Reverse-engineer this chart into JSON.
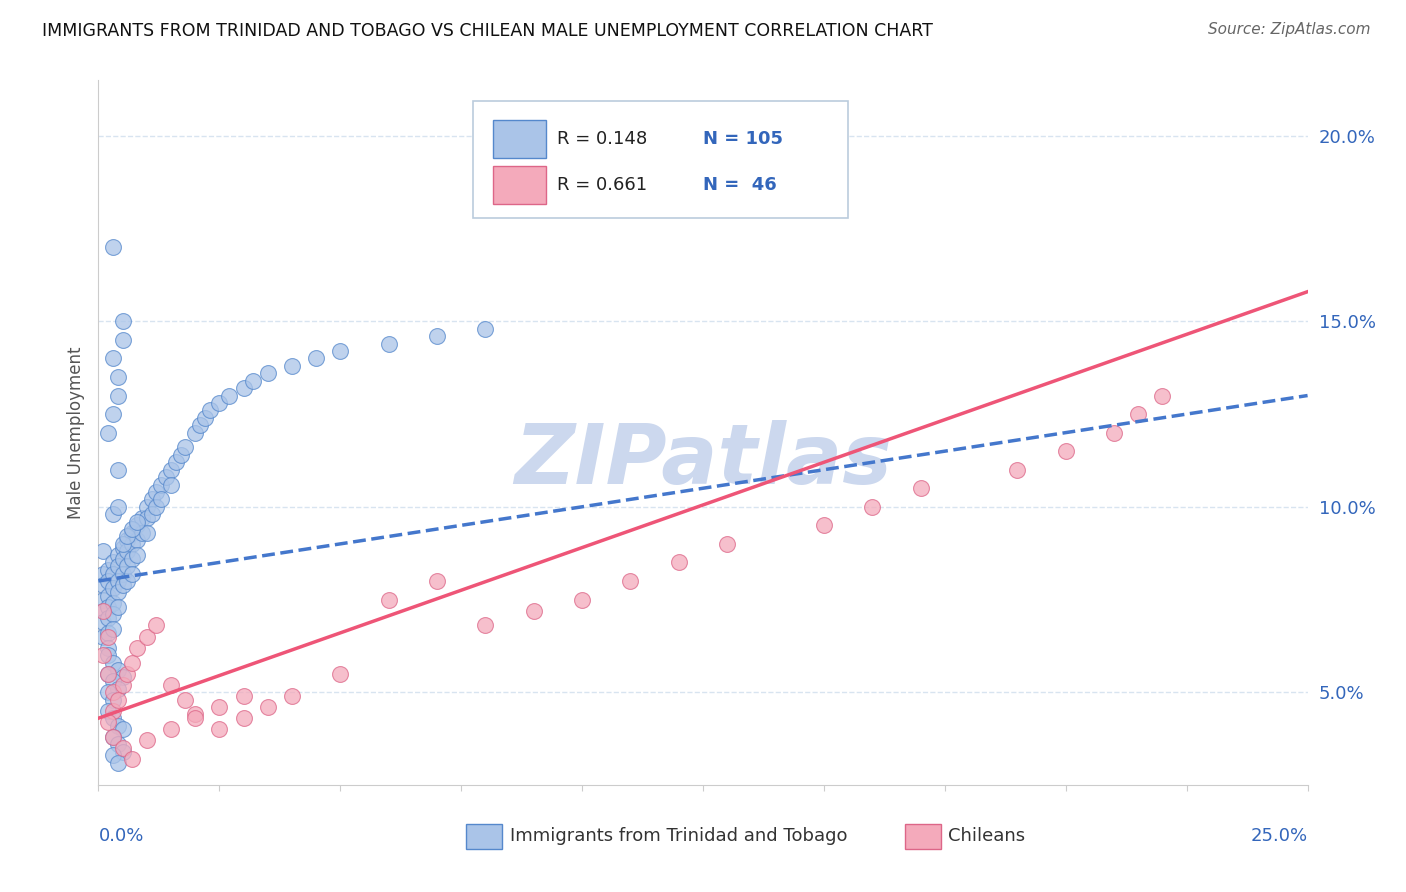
{
  "title": "IMMIGRANTS FROM TRINIDAD AND TOBAGO VS CHILEAN MALE UNEMPLOYMENT CORRELATION CHART",
  "source": "Source: ZipAtlas.com",
  "ylabel": "Male Unemployment",
  "yticks": [
    0.05,
    0.1,
    0.15,
    0.2
  ],
  "ytick_labels": [
    "5.0%",
    "10.0%",
    "15.0%",
    "20.0%"
  ],
  "xlim": [
    0.0,
    0.25
  ],
  "ylim": [
    0.025,
    0.215
  ],
  "blue_color": "#aac4e8",
  "pink_color": "#f4aabb",
  "blue_edge_color": "#5588cc",
  "pink_edge_color": "#dd6688",
  "blue_trend_color": "#4477cc",
  "pink_trend_color": "#ee5577",
  "legend_R_color": "#3366bb",
  "legend_N_color": "#3366bb",
  "watermark_color": "#ccd8ee",
  "background_color": "#ffffff",
  "grid_color": "#d8e4f0",
  "blue_trend_y0": 0.08,
  "blue_trend_y1": 0.13,
  "pink_trend_y0": 0.043,
  "pink_trend_y1": 0.158,
  "legend_blue_R": "R = 0.148",
  "legend_blue_N": "N = 105",
  "legend_pink_R": "R = 0.661",
  "legend_pink_N": "N =  46",
  "blue_scatter_x": [
    0.001,
    0.001,
    0.001,
    0.001,
    0.001,
    0.001,
    0.001,
    0.002,
    0.002,
    0.002,
    0.002,
    0.002,
    0.002,
    0.002,
    0.003,
    0.003,
    0.003,
    0.003,
    0.003,
    0.003,
    0.004,
    0.004,
    0.004,
    0.004,
    0.004,
    0.005,
    0.005,
    0.005,
    0.005,
    0.006,
    0.006,
    0.006,
    0.006,
    0.007,
    0.007,
    0.007,
    0.007,
    0.008,
    0.008,
    0.008,
    0.009,
    0.009,
    0.01,
    0.01,
    0.01,
    0.011,
    0.011,
    0.012,
    0.012,
    0.013,
    0.013,
    0.014,
    0.015,
    0.015,
    0.016,
    0.017,
    0.018,
    0.02,
    0.021,
    0.022,
    0.023,
    0.025,
    0.027,
    0.03,
    0.032,
    0.035,
    0.04,
    0.045,
    0.05,
    0.06,
    0.07,
    0.08,
    0.002,
    0.003,
    0.004,
    0.005,
    0.002,
    0.003,
    0.004,
    0.002,
    0.003,
    0.002,
    0.003,
    0.004,
    0.005,
    0.003,
    0.004,
    0.005,
    0.003,
    0.004,
    0.003,
    0.004,
    0.005,
    0.003,
    0.004,
    0.005,
    0.002,
    0.003,
    0.004,
    0.005,
    0.006,
    0.007,
    0.008,
    0.003,
    0.004
  ],
  "blue_scatter_y": [
    0.082,
    0.079,
    0.075,
    0.072,
    0.069,
    0.065,
    0.088,
    0.083,
    0.08,
    0.076,
    0.073,
    0.07,
    0.066,
    0.062,
    0.085,
    0.082,
    0.078,
    0.074,
    0.071,
    0.067,
    0.087,
    0.084,
    0.08,
    0.077,
    0.073,
    0.089,
    0.086,
    0.082,
    0.079,
    0.091,
    0.088,
    0.084,
    0.08,
    0.093,
    0.09,
    0.086,
    0.082,
    0.095,
    0.091,
    0.087,
    0.097,
    0.093,
    0.1,
    0.097,
    0.093,
    0.102,
    0.098,
    0.104,
    0.1,
    0.106,
    0.102,
    0.108,
    0.11,
    0.106,
    0.112,
    0.114,
    0.116,
    0.12,
    0.122,
    0.124,
    0.126,
    0.128,
    0.13,
    0.132,
    0.134,
    0.136,
    0.138,
    0.14,
    0.142,
    0.144,
    0.146,
    0.148,
    0.06,
    0.058,
    0.056,
    0.054,
    0.055,
    0.053,
    0.051,
    0.05,
    0.048,
    0.045,
    0.043,
    0.041,
    0.04,
    0.038,
    0.036,
    0.034,
    0.033,
    0.031,
    0.17,
    0.11,
    0.15,
    0.14,
    0.135,
    0.145,
    0.12,
    0.125,
    0.13,
    0.09,
    0.092,
    0.094,
    0.096,
    0.098,
    0.1
  ],
  "pink_scatter_x": [
    0.001,
    0.001,
    0.002,
    0.002,
    0.003,
    0.003,
    0.004,
    0.005,
    0.006,
    0.007,
    0.008,
    0.01,
    0.012,
    0.015,
    0.018,
    0.02,
    0.025,
    0.03,
    0.035,
    0.04,
    0.05,
    0.06,
    0.07,
    0.08,
    0.09,
    0.1,
    0.11,
    0.12,
    0.13,
    0.15,
    0.16,
    0.17,
    0.19,
    0.2,
    0.21,
    0.215,
    0.22,
    0.002,
    0.003,
    0.005,
    0.007,
    0.01,
    0.015,
    0.02,
    0.025,
    0.03
  ],
  "pink_scatter_y": [
    0.072,
    0.06,
    0.065,
    0.055,
    0.05,
    0.045,
    0.048,
    0.052,
    0.055,
    0.058,
    0.062,
    0.065,
    0.068,
    0.052,
    0.048,
    0.044,
    0.04,
    0.043,
    0.046,
    0.049,
    0.055,
    0.075,
    0.08,
    0.068,
    0.072,
    0.075,
    0.08,
    0.085,
    0.09,
    0.095,
    0.1,
    0.105,
    0.11,
    0.115,
    0.12,
    0.125,
    0.13,
    0.042,
    0.038,
    0.035,
    0.032,
    0.037,
    0.04,
    0.043,
    0.046,
    0.049
  ]
}
